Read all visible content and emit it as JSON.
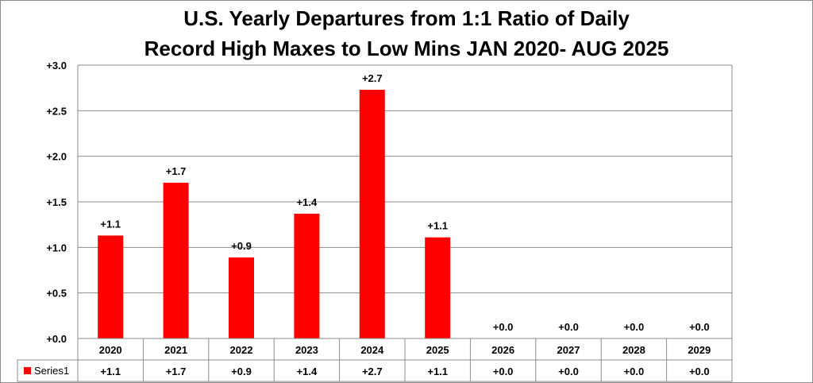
{
  "chart_data": {
    "type": "bar",
    "title_lines": [
      "U.S. Yearly Departures from 1:1 Ratio of Daily",
      "Record High Maxes to Low Mins JAN 2020- AUG 2025"
    ],
    "categories": [
      "2020",
      "2021",
      "2022",
      "2023",
      "2024",
      "2025",
      "2026",
      "2027",
      "2028",
      "2029"
    ],
    "series": [
      {
        "name": "Series1",
        "color": "#ff0000",
        "values": [
          1.13,
          1.71,
          0.89,
          1.37,
          2.73,
          1.11,
          0,
          0,
          0,
          0
        ],
        "labels": [
          "+1.1",
          "+1.7",
          "+0.9",
          "+1.4",
          "+2.7",
          "+1.1",
          "+0.0",
          "+0.0",
          "+0.0",
          "+0.0"
        ]
      }
    ],
    "y_ticks": [
      "+0.0",
      "+0.5",
      "+1.0",
      "+1.5",
      "+2.0",
      "+2.5",
      "+3.0"
    ],
    "ylim": [
      0,
      3
    ],
    "grid": true,
    "legend": "data-table",
    "xlabel": "",
    "ylabel": ""
  }
}
